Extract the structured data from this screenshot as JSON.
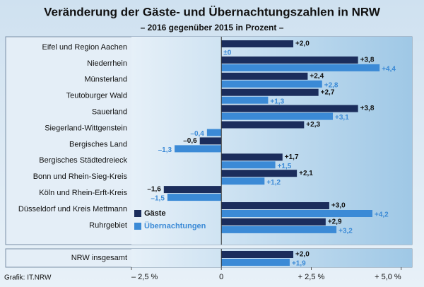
{
  "chart_data": {
    "type": "hbar",
    "title": "Veränderung der Gäste- und Übernachtungszahlen in NRW",
    "subtitle": "– 2016 gegenüber  2015 in Prozent –",
    "source": "Grafik: IT.NRW",
    "categories": [
      "Eifel und Region Aachen",
      "Niederrhein",
      "Münsterland",
      "Teutoburger Wald",
      "Sauerland",
      "Siegerland-Wittgenstein",
      "Bergisches Land",
      "Bergisches Städtedreieck",
      "Bonn und Rhein-Sieg-Kreis",
      "Köln und Rhein-Erft-Kreis",
      "Düsseldorf und Kreis Mettmann",
      "Ruhrgebiet",
      "NRW insgesamt"
    ],
    "series": [
      {
        "name": "Gäste",
        "color": "#1b2d5c",
        "values": [
          2.0,
          3.8,
          2.4,
          2.7,
          3.8,
          2.3,
          -0.6,
          1.7,
          2.1,
          -1.6,
          3.0,
          2.9,
          2.0
        ],
        "value_labels": [
          "+2,0",
          "+3,8",
          "+2,4",
          "+2,7",
          "+3,8",
          "+2,3",
          "–0,6",
          "+1,7",
          "+2,1",
          "–1,6",
          "+3,0",
          "+2,9",
          "+2,0"
        ]
      },
      {
        "name": "Übernachtungen",
        "color": "#3b8ad6",
        "values": [
          0,
          4.4,
          2.8,
          1.3,
          3.1,
          -0.4,
          -1.3,
          1.5,
          1.2,
          -1.5,
          4.2,
          3.2,
          1.9
        ],
        "value_labels": [
          "±0",
          "+4,4",
          "+2,8",
          "+1,3",
          "+3,1",
          "–0,4",
          "–1,3",
          "+1,5",
          "+1,2",
          "–1,5",
          "+4,2",
          "+3,2",
          "+1,9"
        ]
      }
    ],
    "xlim": [
      -2.5,
      5.3
    ],
    "xticks": [
      {
        "value": -2.5,
        "label": "– 2,5 %"
      },
      0,
      {
        "value": 2.5,
        "label": "+ 2,5 %"
      },
      {
        "value": 5.0,
        "label": "+ 5,0 %"
      }
    ],
    "legend": "lower left"
  }
}
